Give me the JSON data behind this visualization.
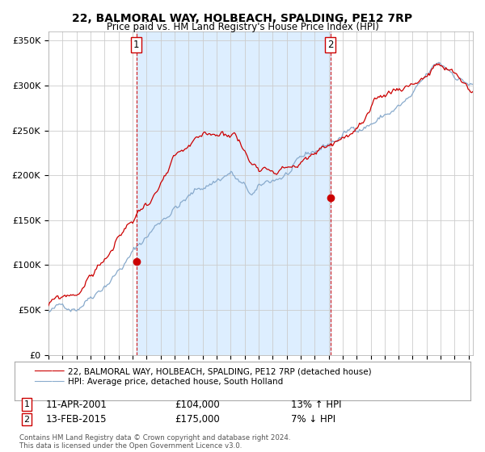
{
  "title": "22, BALMORAL WAY, HOLBEACH, SPALDING, PE12 7RP",
  "subtitle": "Price paid vs. HM Land Registry's House Price Index (HPI)",
  "legend_line1": "22, BALMORAL WAY, HOLBEACH, SPALDING, PE12 7RP (detached house)",
  "legend_line2": "HPI: Average price, detached house, South Holland",
  "transaction1_label": "1",
  "transaction1_date": "11-APR-2001",
  "transaction1_price": "£104,000",
  "transaction1_hpi": "13% ↑ HPI",
  "transaction2_label": "2",
  "transaction2_date": "13-FEB-2015",
  "transaction2_price": "£175,000",
  "transaction2_hpi": "7% ↓ HPI",
  "footer": "Contains HM Land Registry data © Crown copyright and database right 2024.\nThis data is licensed under the Open Government Licence v3.0.",
  "red_color": "#cc0000",
  "blue_color": "#88aacc",
  "shade_color": "#ddeeff",
  "vline_color": "#cc0000",
  "marker_color": "#cc0000",
  "background_color": "#ffffff",
  "grid_color": "#cccccc",
  "ylim": [
    0,
    360000
  ],
  "xlim_start": 1995.0,
  "xlim_end": 2025.3,
  "transaction1_x": 2001.27,
  "transaction1_y": 104000,
  "transaction2_x": 2015.12,
  "transaction2_y": 175000
}
